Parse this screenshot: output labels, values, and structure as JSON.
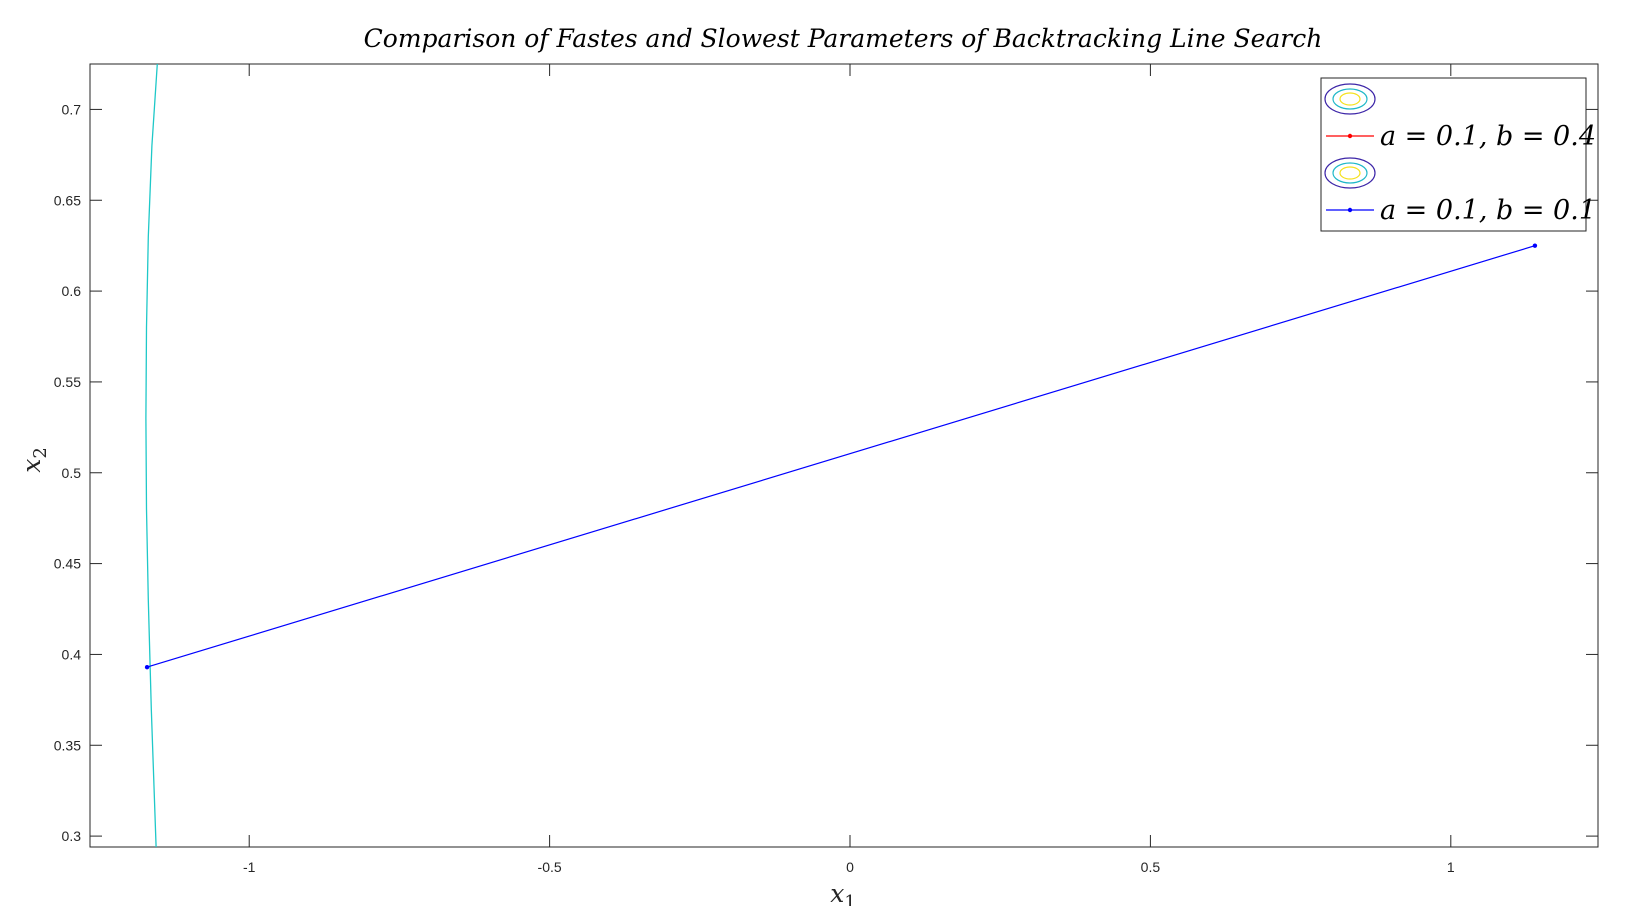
{
  "chart_data": {
    "type": "line",
    "title": "Comparison of Fastes and Slowest Parameters of Backtracking Line Search",
    "xlabel": "x1",
    "ylabel": "x2",
    "xlim": [
      -1.265,
      1.245
    ],
    "ylim": [
      0.294,
      0.725
    ],
    "xticks": [
      -1,
      -0.5,
      0,
      0.5,
      1
    ],
    "xtick_labels": [
      "-1",
      "-0.5",
      "0",
      "0.5",
      "1"
    ],
    "yticks": [
      0.3,
      0.35,
      0.4,
      0.45,
      0.5,
      0.55,
      0.6,
      0.65,
      0.7
    ],
    "ytick_labels": [
      "0.3",
      "0.35",
      "0.4",
      "0.45",
      "0.5",
      "0.55",
      "0.6",
      "0.65",
      "0.7"
    ],
    "grid": false,
    "legend_position": "top-right",
    "series": [
      {
        "name": "a = 0.1, b = 0.4",
        "kind": "contour-marker",
        "color": "#ff0000",
        "x": [],
        "y": []
      },
      {
        "name": "a = 0.1, b = 0.1",
        "kind": "line-with-dots",
        "color": "#0000ff",
        "x": [
          1.14,
          -1.17
        ],
        "y": [
          0.625,
          0.393
        ]
      }
    ],
    "contour_line": {
      "color": "#1ec8c8",
      "x": [
        -1.153,
        -1.162,
        -1.168,
        -1.171,
        -1.172,
        -1.171,
        -1.168,
        -1.163,
        -1.155
      ],
      "y": [
        0.725,
        0.68,
        0.63,
        0.58,
        0.53,
        0.48,
        0.43,
        0.37,
        0.294
      ]
    },
    "legend_contour_colors": [
      "#3d26a8",
      "#1fb8c8",
      "#f5e11e"
    ]
  }
}
